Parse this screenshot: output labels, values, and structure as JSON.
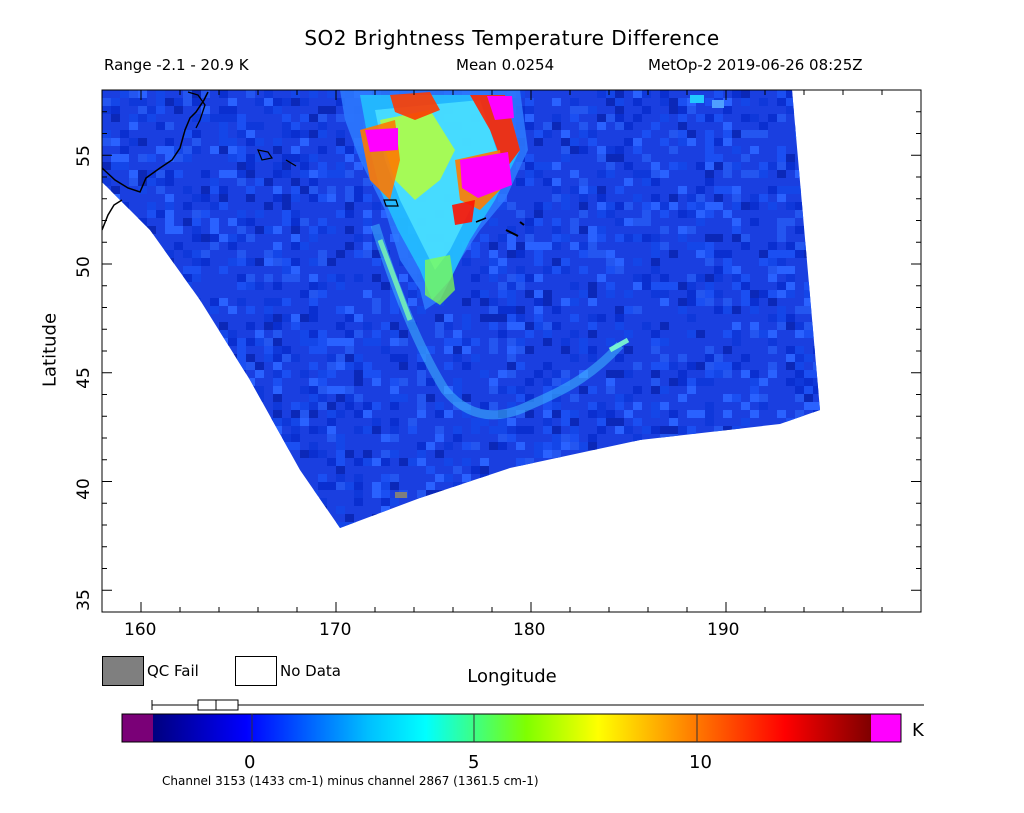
{
  "title": "SO2 Brightness Temperature Difference",
  "range_text": "Range -2.1 - 20.9 K",
  "mean_text": "Mean 0.0254",
  "satellite_time": "MetOp-2 2019-06-26 08:25Z",
  "axes": {
    "xlabel": "Longitude",
    "ylabel": "Latitude",
    "x_ticks": [
      "160",
      "170",
      "180",
      "190"
    ],
    "y_ticks": [
      "35",
      "40",
      "45",
      "50",
      "55"
    ],
    "x_range": [
      158,
      200
    ],
    "y_range": [
      34,
      58
    ]
  },
  "legend": {
    "qc_fail": "QC Fail",
    "no_data": "No Data",
    "qc_color": "#7f7f7f"
  },
  "colorbar": {
    "ticks": [
      "0",
      "5",
      "10"
    ],
    "unit": "K",
    "range": [
      -2.5,
      14
    ],
    "under_color": "#7a0077",
    "over_color": "#ff00ff",
    "colors": [
      "#00007f",
      "#0000ff",
      "#00bfff",
      "#00ffff",
      "#7fff00",
      "#ffff00",
      "#ff7f00",
      "#ff0000",
      "#7f0000"
    ]
  },
  "footer": "Channel 3153 (1433 cm-1) minus channel 2867 (1361.5 cm-1)"
}
